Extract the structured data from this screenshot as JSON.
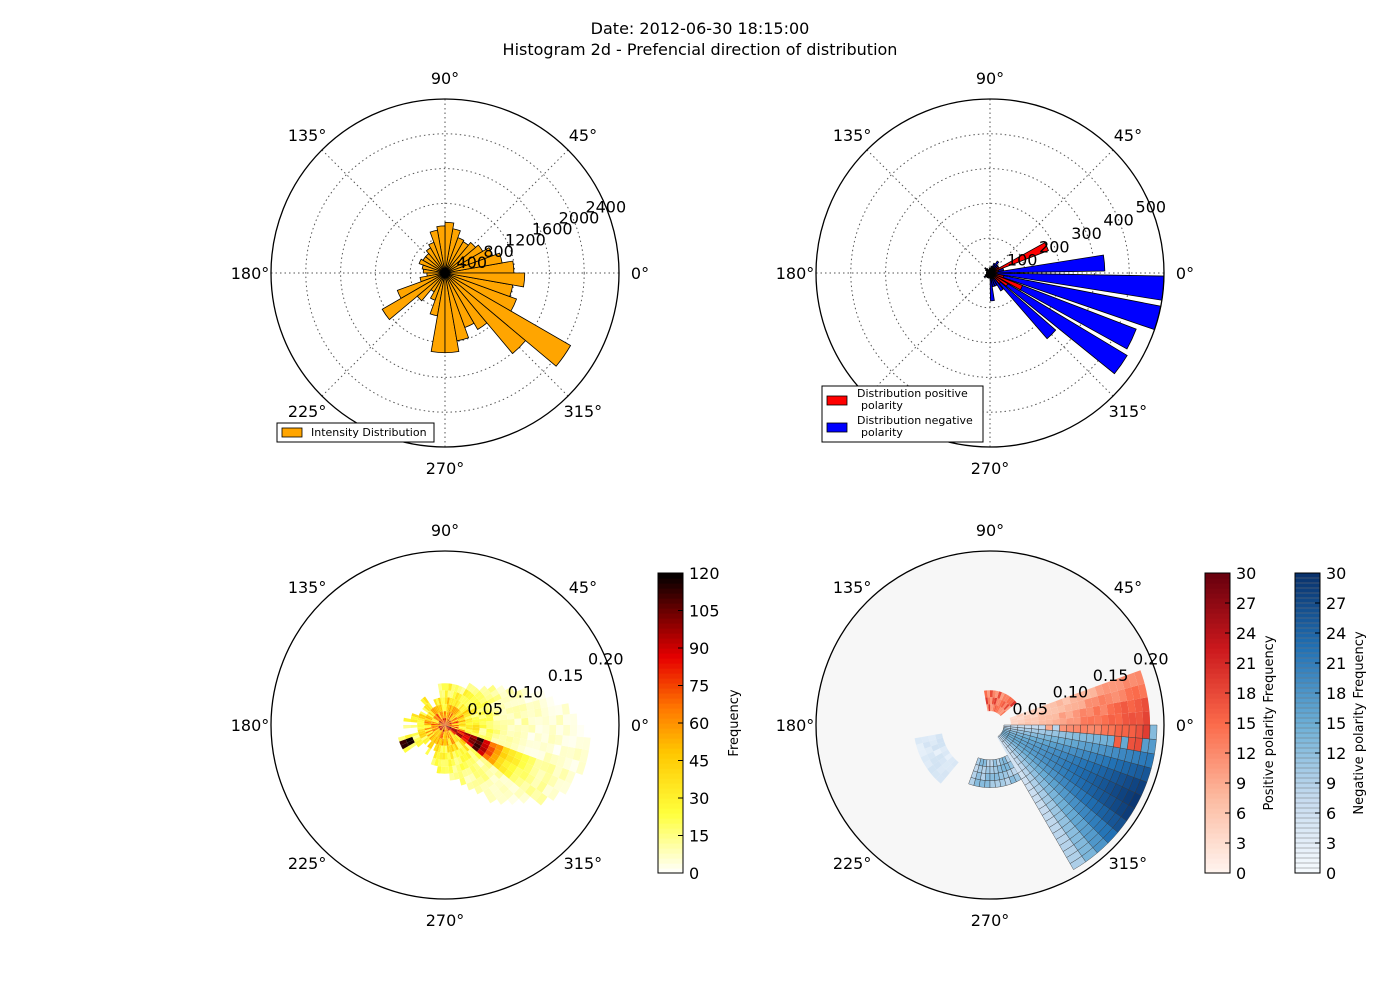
{
  "title_line1": "Date: 2012-06-30 18:15:00",
  "title_line2": "Histogram 2d - Prefencial direction of distribution",
  "colors": {
    "intensity": "#FFA500",
    "positive": "#FF0000",
    "negative": "#0000FF",
    "panel4_bg": "#f7f7f7"
  },
  "chart_data": [
    {
      "type": "bar",
      "projection": "polar",
      "angle_labels": [
        "0°",
        "45°",
        "90°",
        "135°",
        "180°",
        "225°",
        "270°",
        "315°"
      ],
      "radial_ticks": [
        400,
        800,
        1200,
        1600,
        2000,
        2400
      ],
      "radial_tick_labels": [
        "400",
        "800",
        "1200",
        "1600",
        "2000",
        "2400"
      ],
      "rlim": [
        0,
        2400
      ],
      "grid": true,
      "legend_position": "lower-left",
      "series": [
        {
          "name": "Intensity Distribution",
          "color": "#FFA500",
          "angle_deg": [
            5,
            15,
            25,
            35,
            45,
            55,
            65,
            75,
            85,
            95,
            105,
            115,
            125,
            135,
            145,
            155,
            165,
            175,
            185,
            195,
            205,
            215,
            225,
            235,
            245,
            255,
            265,
            275,
            285,
            295,
            305,
            315,
            325,
            335,
            345,
            355
          ],
          "values": [
            950,
            800,
            700,
            600,
            550,
            500,
            520,
            620,
            700,
            650,
            600,
            450,
            400,
            350,
            350,
            380,
            320,
            300,
            250,
            350,
            700,
            1000,
            500,
            300,
            400,
            600,
            1100,
            1100,
            950,
            800,
            900,
            1450,
            2000,
            1050,
            950,
            1100
          ]
        }
      ]
    },
    {
      "type": "bar",
      "projection": "polar",
      "angle_labels": [
        "0°",
        "45°",
        "90°",
        "135°",
        "180°",
        "225°",
        "270°",
        "315°"
      ],
      "radial_ticks": [
        100,
        200,
        300,
        400,
        500
      ],
      "radial_tick_labels": [
        "100",
        "200",
        "300",
        "400",
        "500"
      ],
      "rlim": [
        0,
        500
      ],
      "grid": true,
      "legend_position": "lower-left",
      "series": [
        {
          "name": "Distribution positive polarity",
          "color": "#FF0000",
          "angle_deg": [
            5,
            15,
            25,
            35,
            45,
            55,
            65,
            75,
            85,
            95,
            105,
            115,
            125,
            135,
            145,
            155,
            165,
            175,
            185,
            195,
            205,
            215,
            225,
            235,
            245,
            255,
            265,
            275,
            285,
            295,
            305,
            315,
            325,
            335,
            345,
            355
          ],
          "values": [
            20,
            25,
            180,
            30,
            20,
            15,
            15,
            15,
            10,
            10,
            10,
            10,
            10,
            10,
            10,
            10,
            10,
            10,
            10,
            10,
            10,
            10,
            10,
            10,
            10,
            10,
            10,
            10,
            10,
            15,
            20,
            40,
            60,
            100,
            40,
            20
          ]
        },
        {
          "name": "Distribution negative polarity",
          "color": "#0000FF",
          "angle_deg": [
            5,
            15,
            25,
            35,
            45,
            55,
            65,
            75,
            85,
            95,
            105,
            115,
            125,
            135,
            145,
            155,
            165,
            175,
            185,
            195,
            205,
            215,
            225,
            235,
            245,
            255,
            265,
            275,
            285,
            295,
            305,
            315,
            325,
            335,
            345,
            355
          ],
          "values": [
            330,
            40,
            30,
            25,
            30,
            40,
            30,
            20,
            15,
            15,
            10,
            10,
            15,
            20,
            15,
            10,
            10,
            10,
            10,
            10,
            15,
            20,
            15,
            15,
            15,
            15,
            15,
            80,
            40,
            40,
            60,
            250,
            460,
            450,
            500,
            500
          ]
        }
      ]
    },
    {
      "type": "heatmap",
      "projection": "polar",
      "angle_labels": [
        "0°",
        "45°",
        "90°",
        "135°",
        "180°",
        "225°",
        "270°",
        "315°"
      ],
      "radial_tick_labels": [
        "0.05",
        "0.10",
        "0.15",
        "0.20"
      ],
      "rlim": [
        0,
        0.2
      ],
      "colorbar": {
        "label": "Frequency",
        "ticks": [
          "0",
          "15",
          "30",
          "45",
          "60",
          "75",
          "90",
          "105",
          "120"
        ],
        "range": [
          0,
          120
        ],
        "colormap": "hot_r"
      }
    },
    {
      "type": "heatmap",
      "projection": "polar",
      "angle_labels": [
        "0°",
        "45°",
        "90°",
        "135°",
        "180°",
        "225°",
        "270°",
        "315°"
      ],
      "radial_tick_labels": [
        "0.05",
        "0.10",
        "0.15",
        "0.20"
      ],
      "rlim": [
        0,
        0.2
      ],
      "colorbars": [
        {
          "label": "Positive polarity Frequency",
          "ticks": [
            "0",
            "3",
            "6",
            "9",
            "12",
            "15",
            "18",
            "21",
            "24",
            "27",
            "30"
          ],
          "range": [
            0,
            30
          ],
          "colormap": "Reds"
        },
        {
          "label": "Negative polarity Frequency",
          "ticks": [
            "0",
            "3",
            "6",
            "9",
            "12",
            "15",
            "18",
            "21",
            "24",
            "27",
            "30"
          ],
          "range": [
            0,
            30
          ],
          "colormap": "Blues"
        }
      ]
    }
  ]
}
